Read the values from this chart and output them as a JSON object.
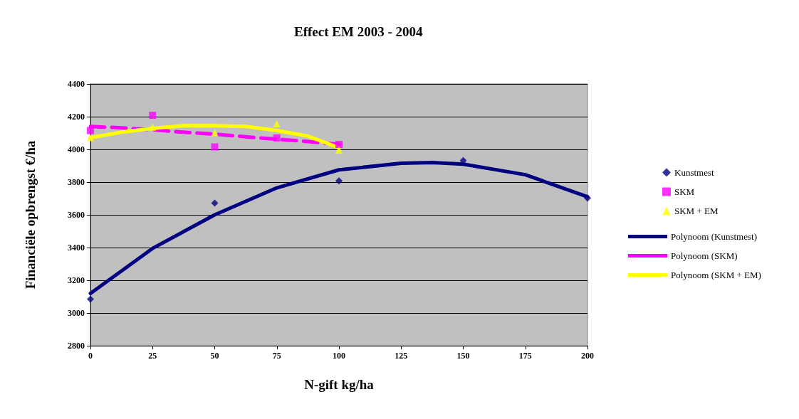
{
  "chart_data": {
    "type": "scatter",
    "title": "Effect EM 2003 - 2004",
    "xlabel": "N-gift kg/ha",
    "ylabel": "Financiële opbrengst €/ha",
    "xlim": [
      0,
      200
    ],
    "xticks": [
      0,
      25,
      50,
      75,
      100,
      125,
      150,
      175,
      200
    ],
    "ylim": [
      2800,
      4400
    ],
    "yticks": [
      2800,
      3000,
      3200,
      3400,
      3600,
      3800,
      4000,
      4200,
      4400
    ],
    "grid": "y",
    "legend": "right",
    "series": [
      {
        "name": "Kunstmest",
        "marker": "diamond",
        "color": "#000080",
        "x": [
          0,
          50,
          100,
          150,
          200
        ],
        "values": [
          3085,
          3672,
          3808,
          3932,
          3702
        ]
      },
      {
        "name": "SKM",
        "marker": "square",
        "color": "#ff00ff",
        "x": [
          0,
          25,
          50,
          75,
          100
        ],
        "values": [
          4115,
          4208,
          4015,
          4070,
          4030
        ]
      },
      {
        "name": "SKM + EM",
        "marker": "triangle",
        "color": "#ffff00",
        "x": [
          0,
          25,
          50,
          75,
          100
        ],
        "values": [
          4072,
          4136,
          4102,
          4157,
          3996
        ]
      },
      {
        "name": "Polynoom (Kunstmest)",
        "type": "line",
        "marker": "none",
        "line_style": "solid",
        "color": "#000080",
        "x": [
          0,
          25,
          50,
          75,
          100,
          125,
          137.5,
          150,
          175,
          200
        ],
        "values": [
          3120,
          3395,
          3600,
          3765,
          3875,
          3915,
          3920,
          3910,
          3845,
          3710
        ]
      },
      {
        "name": "Polynoom (SKM)",
        "type": "line",
        "marker": "none",
        "line_style": "dashed",
        "color": "#ff00ff",
        "x": [
          0,
          12.5,
          25,
          37.5,
          50,
          62.5,
          75,
          87.5,
          100
        ],
        "values": [
          4140,
          4132,
          4120,
          4105,
          4093,
          4077,
          4062,
          4048,
          4030
        ]
      },
      {
        "name": "Polynoom (SKM + EM)",
        "type": "line",
        "marker": "none",
        "line_style": "solid",
        "color": "#ffff00",
        "x": [
          0,
          12.5,
          25,
          37.5,
          50,
          62.5,
          75,
          87.5,
          100
        ],
        "values": [
          4072,
          4105,
          4128,
          4145,
          4145,
          4140,
          4115,
          4081,
          4010
        ]
      }
    ]
  }
}
